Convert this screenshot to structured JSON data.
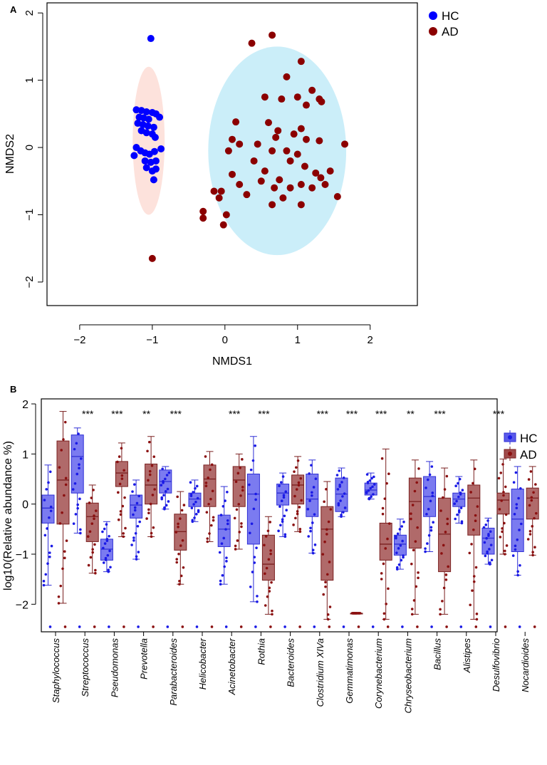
{
  "chart_data": [
    {
      "panel_label": "A",
      "type": "scatter",
      "xlabel": "NMDS1",
      "ylabel": "NMDS2",
      "xlim": [
        -2.45,
        2.65
      ],
      "ylim": [
        -2.35,
        2.15
      ],
      "xticks": [
        -2,
        -1,
        0,
        1,
        2
      ],
      "yticks": [
        -2,
        -1,
        0,
        1,
        2
      ],
      "legend": {
        "position": "top-right",
        "entries": [
          {
            "label": "HC",
            "color": "#0000ff"
          },
          {
            "label": "AD",
            "color": "#8b0000"
          }
        ]
      },
      "series": [
        {
          "name": "HC",
          "color": "#0000ff",
          "ellipse": {
            "cx": -1.05,
            "cy": 0.1,
            "rx": 0.22,
            "ry": 1.1,
            "fill": "#fde2dc"
          },
          "points": [
            [
              -1.02,
              1.62
            ],
            [
              -1.22,
              0.56
            ],
            [
              -1.15,
              0.55
            ],
            [
              -1.08,
              0.53
            ],
            [
              -1.0,
              0.52
            ],
            [
              -0.95,
              0.5
            ],
            [
              -1.18,
              0.45
            ],
            [
              -1.12,
              0.44
            ],
            [
              -1.05,
              0.42
            ],
            [
              -0.9,
              0.45
            ],
            [
              -1.2,
              0.36
            ],
            [
              -1.13,
              0.34
            ],
            [
              -1.06,
              0.32
            ],
            [
              -0.98,
              0.3
            ],
            [
              -1.15,
              0.25
            ],
            [
              -1.08,
              0.22
            ],
            [
              -1.0,
              0.2
            ],
            [
              -0.96,
              0.15
            ],
            [
              -1.22,
              0.0
            ],
            [
              -1.16,
              -0.05
            ],
            [
              -1.1,
              -0.08
            ],
            [
              -1.04,
              -0.1
            ],
            [
              -0.97,
              -0.06
            ],
            [
              -0.88,
              -0.02
            ],
            [
              -1.25,
              -0.12
            ],
            [
              -1.1,
              -0.2
            ],
            [
              -1.02,
              -0.22
            ],
            [
              -0.95,
              -0.2
            ],
            [
              -1.08,
              -0.3
            ],
            [
              -1.0,
              -0.35
            ],
            [
              -0.95,
              -0.32
            ],
            [
              -0.98,
              -0.48
            ]
          ]
        },
        {
          "name": "AD",
          "color": "#8b0000",
          "ellipse": {
            "cx": 0.72,
            "cy": -0.05,
            "rx": 0.95,
            "ry": 1.55,
            "fill": "#cbeef9"
          },
          "points": [
            [
              0.65,
              1.67
            ],
            [
              0.37,
              1.55
            ],
            [
              1.05,
              1.28
            ],
            [
              0.85,
              1.05
            ],
            [
              1.2,
              0.85
            ],
            [
              1.0,
              0.75
            ],
            [
              1.3,
              0.72
            ],
            [
              1.33,
              0.68
            ],
            [
              0.55,
              0.75
            ],
            [
              0.78,
              0.72
            ],
            [
              1.12,
              0.63
            ],
            [
              0.15,
              0.38
            ],
            [
              0.6,
              0.37
            ],
            [
              0.73,
              0.25
            ],
            [
              0.95,
              0.2
            ],
            [
              1.05,
              0.28
            ],
            [
              0.7,
              0.15
            ],
            [
              1.12,
              0.12
            ],
            [
              1.3,
              0.1
            ],
            [
              1.65,
              0.05
            ],
            [
              0.1,
              0.12
            ],
            [
              0.2,
              0.05
            ],
            [
              0.05,
              -0.05
            ],
            [
              0.45,
              0.05
            ],
            [
              0.65,
              -0.05
            ],
            [
              0.85,
              -0.05
            ],
            [
              1.0,
              -0.1
            ],
            [
              0.4,
              -0.2
            ],
            [
              0.9,
              -0.2
            ],
            [
              1.1,
              -0.28
            ],
            [
              1.25,
              -0.38
            ],
            [
              1.45,
              -0.35
            ],
            [
              0.55,
              -0.35
            ],
            [
              0.1,
              -0.4
            ],
            [
              0.5,
              -0.5
            ],
            [
              0.75,
              -0.48
            ],
            [
              1.05,
              -0.55
            ],
            [
              1.32,
              -0.45
            ],
            [
              1.38,
              -0.55
            ],
            [
              0.2,
              -0.55
            ],
            [
              0.68,
              -0.6
            ],
            [
              0.9,
              -0.6
            ],
            [
              1.2,
              -0.6
            ],
            [
              -0.05,
              -0.65
            ],
            [
              -0.15,
              -0.65
            ],
            [
              0.3,
              -0.7
            ],
            [
              0.8,
              -0.75
            ],
            [
              1.55,
              -0.73
            ],
            [
              -0.08,
              -0.75
            ],
            [
              0.65,
              -0.85
            ],
            [
              1.05,
              -0.85
            ],
            [
              -0.3,
              -0.95
            ],
            [
              -0.3,
              -1.05
            ],
            [
              0.02,
              -1.0
            ],
            [
              -0.02,
              -1.15
            ],
            [
              -1.0,
              -1.65
            ]
          ]
        }
      ]
    },
    {
      "panel_label": "B",
      "type": "box",
      "ylabel": "log10(Relative abundance %)",
      "ylim": [
        -2.55,
        2.1
      ],
      "yticks": [
        -2,
        -1,
        0,
        1,
        2
      ],
      "legend": {
        "position": "top-right",
        "entries": [
          {
            "label": "HC",
            "color": "#5a5aea"
          },
          {
            "label": "AD",
            "color": "#a04a4a"
          }
        ]
      },
      "categories": [
        "Staphylococcus",
        "Streptococcus",
        "Pseudomonas",
        "Prevotella",
        "Parabacteroides",
        "Helicobacter",
        "Acinetobacter",
        "Rothia",
        "Bacteroides",
        "Clostridium XIVa",
        "Gemmatimonas",
        "Corynebacterium",
        "Chryseobacterium",
        "Bacillus",
        "Alistipes",
        "Desulfovibrio",
        "Nocardioides"
      ],
      "significance": [
        "",
        "***",
        "***",
        "**",
        "***",
        "",
        "***",
        "***",
        "",
        "***",
        "***",
        "***",
        "**",
        "***",
        "",
        "***",
        ""
      ],
      "series": [
        {
          "name": "HC",
          "color": "#5a5aea",
          "boxes": [
            {
              "min": -1.62,
              "q1": -0.38,
              "median": -0.08,
              "q3": 0.18,
              "max": 0.78
            },
            {
              "min": -0.58,
              "q1": 0.22,
              "median": 0.95,
              "q3": 1.38,
              "max": 1.52
            },
            {
              "min": -1.35,
              "q1": -1.12,
              "median": -0.9,
              "q3": -0.7,
              "max": -0.35
            },
            {
              "min": -1.1,
              "q1": -0.28,
              "median": -0.02,
              "q3": 0.18,
              "max": 0.48
            },
            {
              "min": -0.1,
              "q1": 0.22,
              "median": 0.45,
              "q3": 0.68,
              "max": 0.75
            },
            {
              "min": -0.35,
              "q1": -0.05,
              "median": 0.1,
              "q3": 0.22,
              "max": 0.48
            },
            {
              "min": -1.6,
              "q1": -0.85,
              "median": -0.5,
              "q3": -0.22,
              "max": 0.35
            },
            {
              "min": -1.95,
              "q1": -0.8,
              "median": 0.2,
              "q3": 0.6,
              "max": 1.35
            },
            {
              "min": -0.65,
              "q1": -0.02,
              "median": 0.22,
              "q3": 0.4,
              "max": 0.62
            },
            {
              "min": -0.98,
              "q1": -0.25,
              "median": 0.1,
              "q3": 0.6,
              "max": 0.88
            },
            {
              "min": -0.25,
              "q1": -0.15,
              "median": 0.2,
              "q3": 0.52,
              "max": 0.72
            },
            {
              "min": 0.1,
              "q1": 0.18,
              "median": 0.28,
              "q3": 0.42,
              "max": 0.62
            },
            {
              "min": -1.3,
              "q1": -1.02,
              "median": -0.8,
              "q3": -0.62,
              "max": -0.3
            },
            {
              "min": -0.95,
              "q1": -0.25,
              "median": 0.15,
              "q3": 0.55,
              "max": 0.85
            },
            {
              "min": -0.38,
              "q1": -0.05,
              "median": 0.1,
              "q3": 0.22,
              "max": 0.55
            },
            {
              "min": -1.2,
              "q1": -1.0,
              "median": -0.68,
              "q3": -0.48,
              "max": -0.28
            },
            {
              "min": -1.42,
              "q1": -0.95,
              "median": -0.3,
              "q3": 0.3,
              "max": 0.75
            }
          ]
        },
        {
          "name": "AD",
          "color": "#a04a4a",
          "boxes": [
            {
              "min": -1.98,
              "q1": -0.4,
              "median": 0.48,
              "q3": 1.26,
              "max": 1.85
            },
            {
              "min": -1.38,
              "q1": -0.75,
              "median": -0.25,
              "q3": 0.02,
              "max": 0.38
            },
            {
              "min": -0.65,
              "q1": 0.35,
              "median": 0.62,
              "q3": 0.85,
              "max": 1.22
            },
            {
              "min": -0.65,
              "q1": 0.0,
              "median": 0.38,
              "q3": 0.8,
              "max": 1.35
            },
            {
              "min": -1.6,
              "q1": -0.92,
              "median": -0.55,
              "q3": -0.2,
              "max": 0.25
            },
            {
              "min": -0.75,
              "q1": -0.05,
              "median": 0.5,
              "q3": 0.78,
              "max": 1.05
            },
            {
              "min": -0.9,
              "q1": -0.05,
              "median": 0.48,
              "q3": 0.75,
              "max": 1.0
            },
            {
              "min": -2.2,
              "q1": -1.52,
              "median": -1.2,
              "q3": -0.62,
              "max": -0.25
            },
            {
              "min": -0.55,
              "q1": 0.0,
              "median": 0.38,
              "q3": 0.58,
              "max": 0.95
            },
            {
              "min": -2.3,
              "q1": -1.52,
              "median": -0.5,
              "q3": -0.05,
              "max": 0.45
            },
            {
              "min": -2.18,
              "q1": -2.18,
              "median": -2.18,
              "q3": -2.18,
              "max": -2.18
            },
            {
              "min": -2.3,
              "q1": -1.12,
              "median": -0.8,
              "q3": -0.38,
              "max": 1.1
            },
            {
              "min": -2.2,
              "q1": -0.88,
              "median": 0.05,
              "q3": 0.52,
              "max": 0.88
            },
            {
              "min": -2.2,
              "q1": -1.35,
              "median": -0.6,
              "q3": 0.12,
              "max": 0.72
            },
            {
              "min": -2.3,
              "q1": -0.62,
              "median": 0.12,
              "q3": 0.38,
              "max": 0.88
            },
            {
              "min": -1.0,
              "q1": -0.2,
              "median": 0.08,
              "q3": 0.22,
              "max": 0.9
            },
            {
              "min": -1.02,
              "q1": -0.3,
              "median": 0.12,
              "q3": 0.32,
              "max": 0.75
            }
          ]
        }
      ]
    }
  ]
}
